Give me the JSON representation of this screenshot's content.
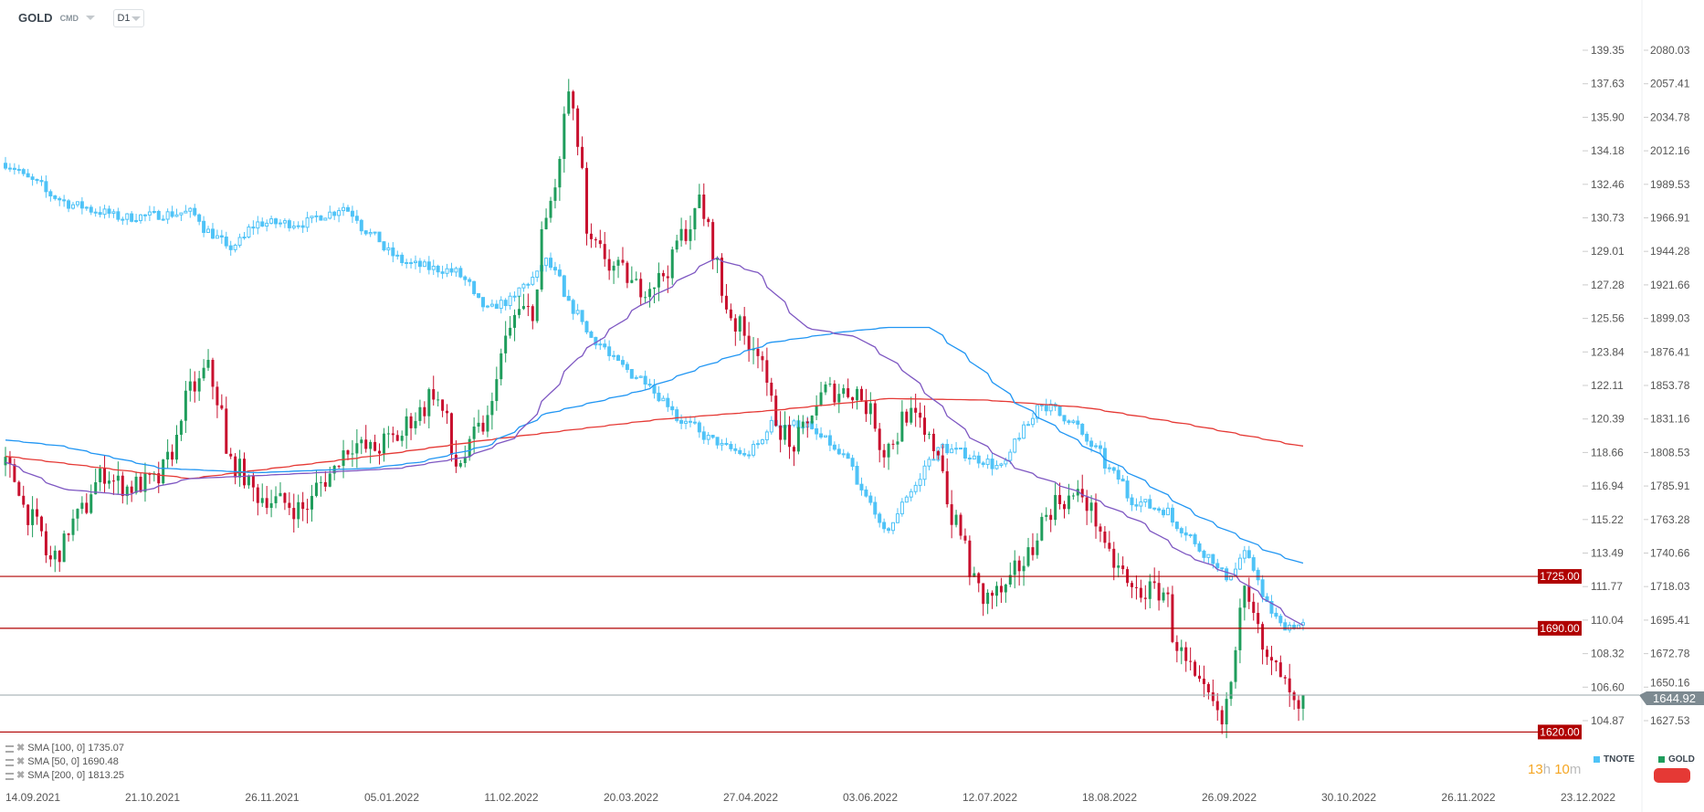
{
  "header": {
    "symbol": "GOLD",
    "market": "CMD",
    "timeframe": "D1"
  },
  "colors": {
    "gold_up": "#1f9d5c",
    "gold_down": "#c8102e",
    "tnote": "#4fc3f7",
    "sma100": "#2196f3",
    "sma50": "#7e57c2",
    "sma200": "#e53935",
    "level": "#b00000",
    "price_tag": "#7d8a91"
  },
  "indicators": [
    {
      "label": "SMA [100,  0] 1735.07"
    },
    {
      "label": "SMA [50,  0] 1690.48"
    },
    {
      "label": "SMA [200,  0] 1813.25"
    }
  ],
  "series_legend": {
    "tnote": "TNOTE",
    "gold": "GOLD"
  },
  "timer": {
    "hours": "13",
    "h": "h",
    "minutes": "10",
    "m": "m"
  },
  "chart_data": {
    "type": "candlestick",
    "tnote_axis": [
      "139.35",
      "137.63",
      "135.90",
      "134.18",
      "132.46",
      "130.73",
      "129.01",
      "127.28",
      "125.56",
      "123.84",
      "122.11",
      "120.39",
      "118.66",
      "116.94",
      "115.22",
      "113.49",
      "111.77",
      "110.04",
      "108.32",
      "106.60",
      "104.87"
    ],
    "gold_axis": [
      "2080.03",
      "2057.41",
      "2034.78",
      "2012.16",
      "1989.53",
      "1966.91",
      "1944.28",
      "1921.66",
      "1899.03",
      "1876.41",
      "1853.78",
      "1831.16",
      "1808.53",
      "1785.91",
      "1763.28",
      "1740.66",
      "1718.03",
      "1695.41",
      "1672.78",
      "1650.16",
      "1627.53"
    ],
    "x_labels": [
      "14.09.2021",
      "21.10.2021",
      "26.11.2021",
      "05.01.2022",
      "11.02.2022",
      "20.03.2022",
      "27.04.2022",
      "03.06.2022",
      "12.07.2022",
      "18.08.2022",
      "26.09.2022",
      "30.10.2022",
      "26.11.2022",
      "23.12.2022"
    ],
    "levels": [
      {
        "value": 1725,
        "label": "1725.00"
      },
      {
        "value": 1690,
        "label": "1690.00"
      },
      {
        "value": 1620,
        "label": "1620.00"
      }
    ],
    "current_price": {
      "value": 1644.92,
      "label": "1644.92"
    },
    "gold_close": [
      [
        "2021-09-14",
        1800
      ],
      [
        "2021-09-28",
        1735
      ],
      [
        "2021-10-14",
        1795
      ],
      [
        "2021-10-21",
        1785
      ],
      [
        "2021-11-01",
        1790
      ],
      [
        "2021-11-10",
        1850
      ],
      [
        "2021-11-16",
        1865
      ],
      [
        "2021-11-22",
        1805
      ],
      [
        "2021-12-01",
        1780
      ],
      [
        "2021-12-15",
        1770
      ],
      [
        "2021-12-30",
        1815
      ],
      [
        "2022-01-05",
        1810
      ],
      [
        "2022-01-14",
        1820
      ],
      [
        "2022-01-25",
        1850
      ],
      [
        "2022-02-01",
        1800
      ],
      [
        "2022-02-10",
        1830
      ],
      [
        "2022-02-18",
        1900
      ],
      [
        "2022-02-24",
        1905
      ],
      [
        "2022-03-08",
        2050
      ],
      [
        "2022-03-14",
        1950
      ],
      [
        "2022-03-21",
        1935
      ],
      [
        "2022-03-29",
        1920
      ],
      [
        "2022-04-05",
        1925
      ],
      [
        "2022-04-18",
        1980
      ],
      [
        "2022-04-22",
        1935
      ],
      [
        "2022-04-28",
        1895
      ],
      [
        "2022-05-05",
        1880
      ],
      [
        "2022-05-12",
        1825
      ],
      [
        "2022-05-16",
        1810
      ],
      [
        "2022-05-26",
        1850
      ],
      [
        "2022-06-06",
        1850
      ],
      [
        "2022-06-14",
        1810
      ],
      [
        "2022-06-21",
        1835
      ],
      [
        "2022-06-30",
        1810
      ],
      [
        "2022-07-05",
        1765
      ],
      [
        "2022-07-14",
        1710
      ],
      [
        "2022-07-21",
        1715
      ],
      [
        "2022-07-27",
        1735
      ],
      [
        "2022-08-05",
        1775
      ],
      [
        "2022-08-15",
        1780
      ],
      [
        "2022-08-22",
        1740
      ],
      [
        "2022-08-30",
        1715
      ],
      [
        "2022-09-08",
        1715
      ],
      [
        "2022-09-15",
        1665
      ],
      [
        "2022-09-27",
        1625
      ],
      [
        "2022-10-04",
        1725
      ],
      [
        "2022-10-10",
        1670
      ],
      [
        "2022-10-17",
        1650
      ],
      [
        "2022-10-20",
        1630
      ],
      [
        "2022-10-21",
        1645
      ]
    ],
    "tnote_close": [
      [
        "2021-09-14",
        133.54
      ],
      [
        "2021-10-01",
        131.58
      ],
      [
        "2021-10-20",
        130.74
      ],
      [
        "2021-11-10",
        131.02
      ],
      [
        "2021-11-22",
        129.07
      ],
      [
        "2021-12-01",
        130.46
      ],
      [
        "2021-12-15",
        130.46
      ],
      [
        "2021-12-28",
        131.3
      ],
      [
        "2022-01-05",
        129.91
      ],
      [
        "2022-01-14",
        128.51
      ],
      [
        "2022-01-21",
        128.23
      ],
      [
        "2022-02-01",
        127.95
      ],
      [
        "2022-02-10",
        126.0
      ],
      [
        "2022-02-18",
        126.55
      ],
      [
        "2022-03-01",
        128.51
      ],
      [
        "2022-03-08",
        126.27
      ],
      [
        "2022-03-15",
        124.6
      ],
      [
        "2022-03-25",
        122.92
      ],
      [
        "2022-04-01",
        122.36
      ],
      [
        "2022-04-11",
        120.41
      ],
      [
        "2022-04-21",
        119.29
      ],
      [
        "2022-05-02",
        118.45
      ],
      [
        "2022-05-10",
        120.13
      ],
      [
        "2022-05-20",
        120.13
      ],
      [
        "2022-06-01",
        118.45
      ],
      [
        "2022-06-14",
        114.54
      ],
      [
        "2022-06-20",
        116.22
      ],
      [
        "2022-07-01",
        119.01
      ],
      [
        "2022-07-11",
        118.45
      ],
      [
        "2022-07-20",
        117.89
      ],
      [
        "2022-08-01",
        121.24
      ],
      [
        "2022-08-10",
        120.41
      ],
      [
        "2022-08-20",
        118.45
      ],
      [
        "2022-08-30",
        116.22
      ],
      [
        "2022-09-09",
        115.66
      ],
      [
        "2022-09-20",
        113.7
      ],
      [
        "2022-09-28",
        112.3
      ],
      [
        "2022-10-04",
        113.42
      ],
      [
        "2022-10-10",
        111.19
      ],
      [
        "2022-10-14",
        109.79
      ],
      [
        "2022-10-21",
        109.79
      ]
    ],
    "sma200": [
      [
        "2021-09-14",
        1806
      ],
      [
        "2021-11-10",
        1791
      ],
      [
        "2022-01-05",
        1806
      ],
      [
        "2022-02-10",
        1817
      ],
      [
        "2022-04-05",
        1831
      ],
      [
        "2022-05-10",
        1837
      ],
      [
        "2022-06-15",
        1845
      ],
      [
        "2022-07-15",
        1844
      ],
      [
        "2022-08-15",
        1839
      ],
      [
        "2022-09-15",
        1828
      ],
      [
        "2022-10-21",
        1813
      ]
    ],
    "sma50": [
      [
        "2021-09-14",
        1802
      ],
      [
        "2021-10-01",
        1784
      ],
      [
        "2021-10-21",
        1780
      ],
      [
        "2021-11-10",
        1791
      ],
      [
        "2021-12-01",
        1793
      ],
      [
        "2021-12-20",
        1795
      ],
      [
        "2022-01-14",
        1798
      ],
      [
        "2022-02-05",
        1806
      ],
      [
        "2022-02-20",
        1820
      ],
      [
        "2022-03-10",
        1872
      ],
      [
        "2022-03-30",
        1908
      ],
      [
        "2022-04-15",
        1930
      ],
      [
        "2022-04-22",
        1940
      ],
      [
        "2022-05-05",
        1930
      ],
      [
        "2022-05-20",
        1893
      ],
      [
        "2022-06-06",
        1886
      ],
      [
        "2022-06-20",
        1864
      ],
      [
        "2022-07-10",
        1820
      ],
      [
        "2022-07-25",
        1798
      ],
      [
        "2022-08-15",
        1780
      ],
      [
        "2022-09-01",
        1762
      ],
      [
        "2022-09-15",
        1740
      ],
      [
        "2022-10-01",
        1725
      ],
      [
        "2022-10-21",
        1692
      ]
    ],
    "sma100": [
      [
        "2021-09-14",
        1817
      ],
      [
        "2021-10-01",
        1813
      ],
      [
        "2021-11-01",
        1798
      ],
      [
        "2021-12-01",
        1795
      ],
      [
        "2022-01-05",
        1798
      ],
      [
        "2022-01-20",
        1802
      ],
      [
        "2022-02-10",
        1813
      ],
      [
        "2022-03-01",
        1835
      ],
      [
        "2022-03-30",
        1850
      ],
      [
        "2022-04-20",
        1868
      ],
      [
        "2022-05-10",
        1883
      ],
      [
        "2022-06-01",
        1890
      ],
      [
        "2022-06-15",
        1893
      ],
      [
        "2022-06-28",
        1893
      ],
      [
        "2022-07-10",
        1872
      ],
      [
        "2022-07-25",
        1842
      ],
      [
        "2022-08-15",
        1813
      ],
      [
        "2022-09-01",
        1791
      ],
      [
        "2022-09-20",
        1765
      ],
      [
        "2022-10-10",
        1743
      ],
      [
        "2022-10-21",
        1734
      ]
    ]
  }
}
